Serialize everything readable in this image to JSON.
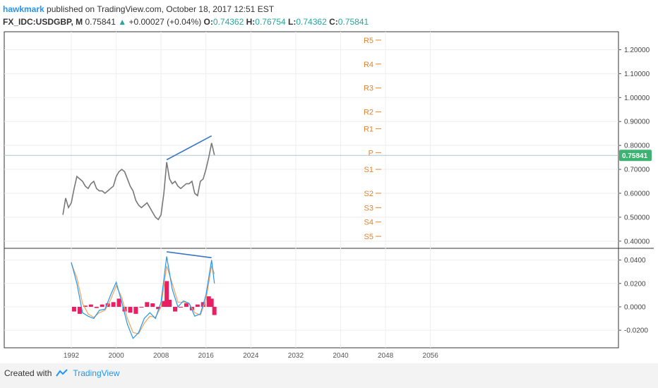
{
  "header": {
    "author": "hawkmark",
    "published_text": "published on TradingView.com, October 18, 2017 12:51 EST"
  },
  "symbol": {
    "name": "FX_IDC:USDGBP, M",
    "last": "0.75841",
    "change": "+0.00027 (+0.04%)",
    "open_label": "O:",
    "open": "0.74362",
    "high_label": "H:",
    "high": "0.76754",
    "low_label": "L:",
    "low": "0.74362",
    "close_label": "C:",
    "close": "0.75841"
  },
  "footer": {
    "created_with": "Created with",
    "brand": "TradingView"
  },
  "colors": {
    "candle": "#777777",
    "trend": "#3a75c4",
    "pivot": "#e0832a",
    "macd": "#2196f3",
    "signal": "#f2a35a",
    "hist": "#e91e63",
    "price_tag": "#3cb371"
  },
  "chart_data": {
    "type": "line",
    "x_ticks": [
      "1992",
      "2000",
      "2008",
      "2016",
      "2024",
      "2032",
      "2040",
      "2048",
      "2056"
    ],
    "price_axis": {
      "ticks": [
        "1.20000",
        "1.10000",
        "1.00000",
        "0.90000",
        "0.80000",
        "0.70000",
        "0.60000",
        "0.50000",
        "0.40000"
      ],
      "ylim": [
        0.37,
        1.275
      ],
      "last_price": 0.75841,
      "last_price_label": "0.75841"
    },
    "price_series": {
      "x": [
        1990.5,
        1991.0,
        1991.5,
        1992.0,
        1992.5,
        1993.0,
        1993.5,
        1994.0,
        1994.5,
        1995.0,
        1995.5,
        1996.0,
        1996.5,
        1997.0,
        1997.5,
        1998.0,
        1998.5,
        1999.0,
        1999.5,
        2000.0,
        2000.5,
        2001.0,
        2001.5,
        2002.0,
        2002.5,
        2003.0,
        2003.5,
        2004.0,
        2004.5,
        2005.0,
        2005.5,
        2006.0,
        2006.5,
        2007.0,
        2007.5,
        2008.0,
        2008.5,
        2009.0,
        2009.5,
        2010.0,
        2010.5,
        2011.0,
        2011.5,
        2012.0,
        2012.5,
        2013.0,
        2013.5,
        2014.0,
        2014.5,
        2015.0,
        2015.5,
        2016.0,
        2016.5,
        2017.0,
        2017.5
      ],
      "values": [
        0.51,
        0.58,
        0.54,
        0.56,
        0.62,
        0.67,
        0.66,
        0.65,
        0.63,
        0.62,
        0.64,
        0.65,
        0.62,
        0.61,
        0.61,
        0.6,
        0.61,
        0.62,
        0.63,
        0.67,
        0.69,
        0.7,
        0.69,
        0.66,
        0.63,
        0.61,
        0.57,
        0.55,
        0.54,
        0.55,
        0.56,
        0.54,
        0.52,
        0.5,
        0.49,
        0.51,
        0.6,
        0.73,
        0.66,
        0.64,
        0.65,
        0.63,
        0.62,
        0.63,
        0.64,
        0.64,
        0.65,
        0.6,
        0.59,
        0.65,
        0.66,
        0.7,
        0.75,
        0.81,
        0.76
      ]
    },
    "pivots": [
      {
        "label": "R5",
        "value": 1.24
      },
      {
        "label": "R4",
        "value": 1.14
      },
      {
        "label": "R3",
        "value": 1.04
      },
      {
        "label": "R2",
        "value": 0.94
      },
      {
        "label": "R1",
        "value": 0.87
      },
      {
        "label": "P",
        "value": 0.77
      },
      {
        "label": "S1",
        "value": 0.7
      },
      {
        "label": "S2",
        "value": 0.6
      },
      {
        "label": "S3",
        "value": 0.54
      },
      {
        "label": "S4",
        "value": 0.48
      },
      {
        "label": "S5",
        "value": 0.42
      }
    ],
    "price_trendline": {
      "x": [
        2009.0,
        2017.0
      ],
      "values": [
        0.74,
        0.84
      ]
    },
    "oscillator_axis": {
      "ticks": [
        "0.0400",
        "0.0200",
        "0.0000",
        "-0.0200"
      ],
      "ylim": [
        -0.035,
        0.05
      ]
    },
    "macd_series": {
      "x": [
        1992.0,
        1993.0,
        1994.0,
        1995.0,
        1996.0,
        1997.0,
        1998.0,
        1999.0,
        2000.0,
        2001.0,
        2002.0,
        2003.0,
        2004.0,
        2005.0,
        2006.0,
        2007.0,
        2008.0,
        2009.0,
        2010.0,
        2011.0,
        2012.0,
        2013.0,
        2014.0,
        2015.0,
        2016.0,
        2017.0,
        2017.5
      ],
      "values": [
        0.038,
        0.02,
        -0.005,
        -0.008,
        -0.01,
        -0.003,
        -0.002,
        0.01,
        0.021,
        0.004,
        -0.015,
        -0.027,
        -0.022,
        -0.01,
        -0.005,
        -0.01,
        0.004,
        0.043,
        0.015,
        0.0,
        0.005,
        0.003,
        -0.008,
        -0.006,
        0.01,
        0.04,
        0.02
      ]
    },
    "signal_series": {
      "x": [
        1992.0,
        1993.0,
        1994.0,
        1995.0,
        1996.0,
        1997.0,
        1998.0,
        1999.0,
        2000.0,
        2001.0,
        2002.0,
        2003.0,
        2004.0,
        2005.0,
        2006.0,
        2007.0,
        2008.0,
        2009.0,
        2010.0,
        2011.0,
        2012.0,
        2013.0,
        2014.0,
        2015.0,
        2016.0,
        2017.0,
        2017.5
      ],
      "values": [
        0.037,
        0.025,
        0.003,
        -0.006,
        -0.009,
        -0.005,
        -0.003,
        0.006,
        0.018,
        0.008,
        -0.01,
        -0.022,
        -0.023,
        -0.014,
        -0.008,
        -0.009,
        0.0,
        0.035,
        0.02,
        0.004,
        0.004,
        0.003,
        -0.005,
        -0.007,
        0.006,
        0.035,
        0.028
      ]
    },
    "histogram": {
      "x": [
        1992.5,
        1993.5,
        1994.5,
        1995.5,
        1996.5,
        1997.5,
        1998.5,
        1999.5,
        2000.5,
        2001.5,
        2002.5,
        2003.5,
        2004.5,
        2005.5,
        2006.5,
        2007.5,
        2008.5,
        2009.0,
        2009.5,
        2010.5,
        2011.5,
        2012.5,
        2013.5,
        2014.5,
        2015.5,
        2016.5,
        2017.0,
        2017.5
      ],
      "values": [
        -0.004,
        -0.006,
        0.001,
        0.002,
        -0.001,
        0.002,
        0.003,
        0.004,
        0.007,
        -0.004,
        -0.005,
        -0.006,
        0.0,
        0.004,
        0.003,
        -0.002,
        0.005,
        0.022,
        0.006,
        -0.004,
        0.0,
        0.003,
        -0.003,
        0.002,
        0.004,
        0.009,
        0.007,
        -0.007
      ]
    },
    "osc_trendline": {
      "x": [
        2009.0,
        2017.0
      ],
      "values": [
        0.047,
        0.042
      ]
    }
  }
}
